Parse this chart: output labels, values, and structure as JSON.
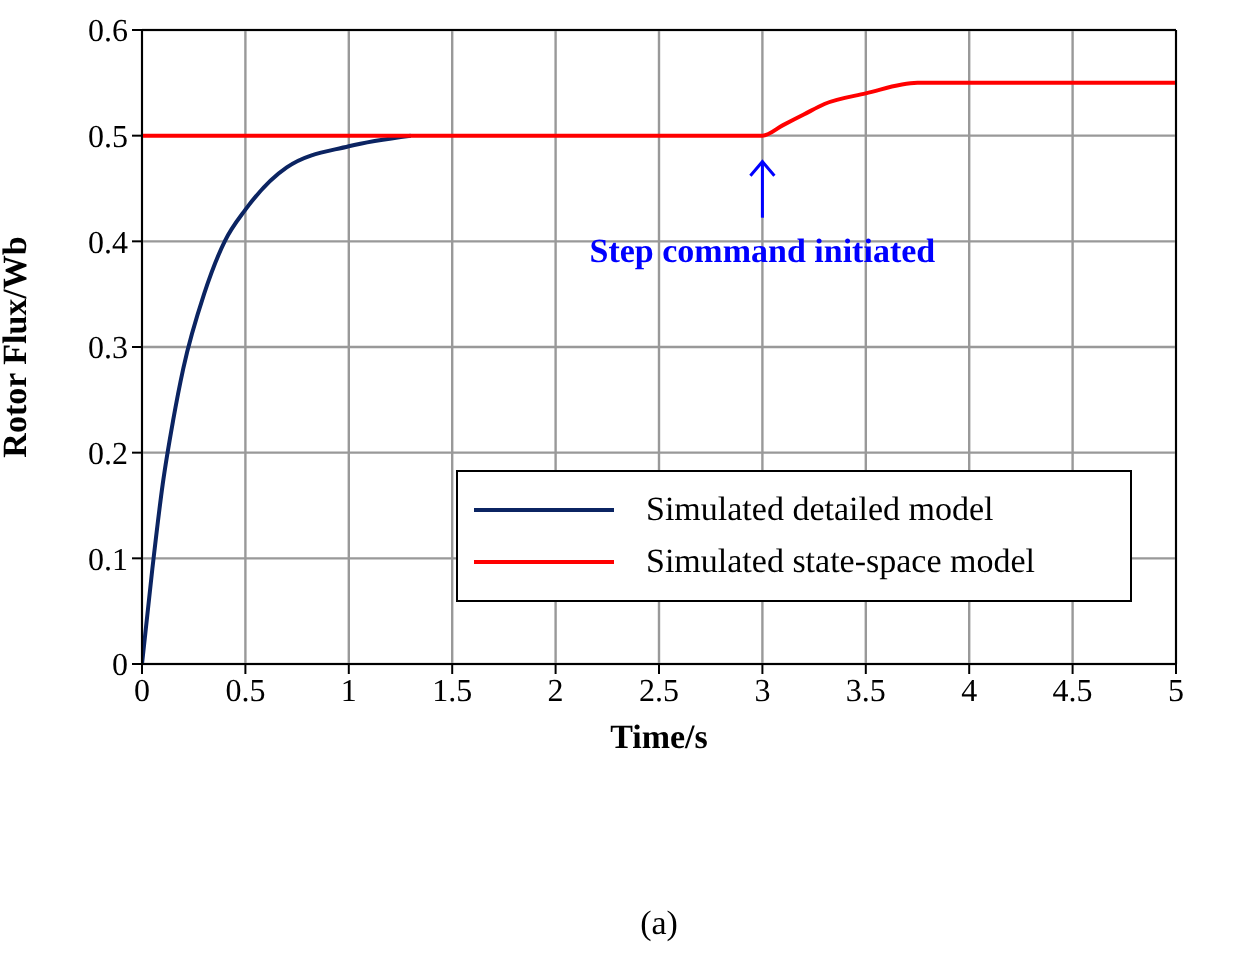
{
  "chart_data": {
    "type": "line",
    "xlabel": "Time/s",
    "ylabel": "Rotor Flux/Wb",
    "xlim": [
      0,
      5
    ],
    "ylim": [
      0,
      0.6
    ],
    "xticks": [
      0,
      0.5,
      1,
      1.5,
      2,
      2.5,
      3,
      3.5,
      4,
      4.5,
      5
    ],
    "yticks": [
      0,
      0.1,
      0.2,
      0.3,
      0.4,
      0.5,
      0.6
    ],
    "grid": true,
    "legend": "right",
    "marker": "none",
    "line_style": "solid",
    "series": [
      {
        "name": "Simulated detailed model",
        "color": "#0b2462",
        "x": [
          0,
          0.05,
          0.1,
          0.15,
          0.2,
          0.3,
          0.4,
          0.5,
          0.7,
          1.0,
          1.3
        ],
        "values": [
          0,
          0.09,
          0.17,
          0.23,
          0.28,
          0.35,
          0.4,
          0.43,
          0.47,
          0.49,
          0.5
        ]
      },
      {
        "name": "Simulated state-space model",
        "color": "#ff0000",
        "x": [
          0,
          1,
          2,
          3,
          3.1,
          3.2,
          3.3,
          3.5,
          3.75,
          4,
          4.5,
          5
        ],
        "values": [
          0.5,
          0.5,
          0.5,
          0.5,
          0.51,
          0.52,
          0.53,
          0.54,
          0.55,
          0.55,
          0.55,
          0.55
        ]
      }
    ],
    "annotations": [
      {
        "text": "Step command initiated",
        "x": 3,
        "y": 0.5
      },
      "(a)"
    ]
  }
}
